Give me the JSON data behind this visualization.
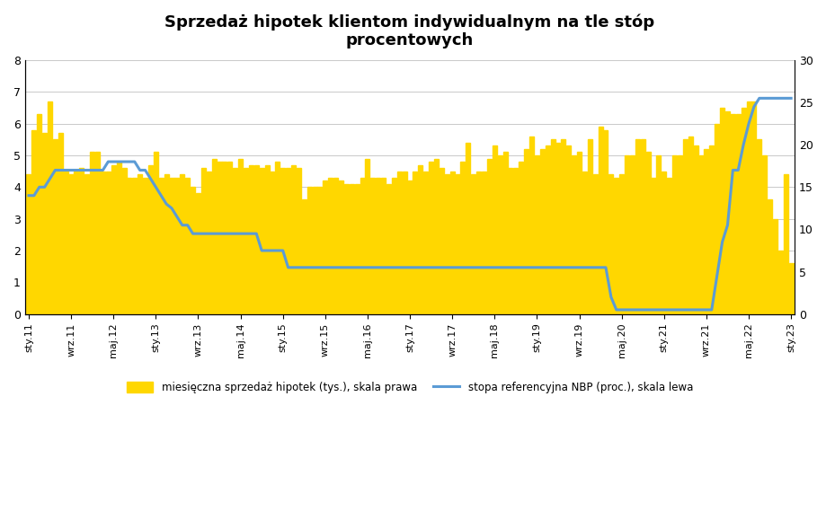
{
  "title": "Sprzedaż hipotek klientom indywidualnym na tle stóp\nprocentowych",
  "bar_color": "#FFD700",
  "line_color": "#5B9BD5",
  "bar_label": "miesięczna sprzedaż hipotek (tys.), skala prawa",
  "line_label": "stopa referencyjna NBP (proc.), skala lewa",
  "left_ylim": [
    0,
    8
  ],
  "right_ylim": [
    0,
    30
  ],
  "left_yticks": [
    0.0,
    1.0,
    2.0,
    3.0,
    4.0,
    5.0,
    6.0,
    7.0,
    8.0
  ],
  "right_yticks": [
    0.0,
    5.0,
    10.0,
    15.0,
    20.0,
    25.0,
    30.0
  ],
  "bar_values": [
    4.4,
    5.8,
    6.3,
    5.7,
    6.7,
    5.5,
    5.7,
    4.5,
    4.4,
    4.5,
    4.6,
    4.4,
    5.1,
    5.1,
    4.5,
    4.5,
    4.7,
    4.8,
    4.6,
    4.3,
    4.3,
    4.4,
    4.3,
    4.7,
    5.1,
    4.3,
    4.4,
    4.3,
    4.3,
    4.4,
    4.3,
    4.0,
    3.8,
    4.6,
    4.5,
    4.9,
    4.8,
    4.8,
    4.8,
    4.6,
    4.9,
    4.6,
    4.7,
    4.7,
    4.6,
    4.7,
    4.5,
    4.8,
    4.6,
    4.6,
    4.7,
    4.6,
    3.6,
    4.0,
    4.0,
    4.0,
    4.2,
    4.3,
    4.3,
    4.2,
    4.1,
    4.1,
    4.1,
    4.3,
    4.9,
    4.3,
    4.3,
    4.3,
    4.1,
    4.3,
    4.5,
    4.5,
    4.2,
    4.5,
    4.7,
    4.5,
    4.8,
    4.9,
    4.6,
    4.4,
    4.5,
    4.4,
    4.8,
    5.4,
    4.4,
    4.5,
    4.5,
    4.9,
    5.3,
    5.0,
    5.1,
    4.6,
    4.6,
    4.8,
    5.2,
    5.6,
    5.0,
    5.2,
    5.3,
    5.5,
    5.4,
    5.5,
    5.3,
    5.0,
    5.1,
    4.5,
    5.5,
    4.4,
    5.9,
    5.8,
    4.4,
    4.3,
    4.4,
    5.0,
    5.0,
    5.5,
    5.5,
    5.1,
    4.3,
    5.0,
    4.5,
    4.3,
    5.0,
    5.0,
    5.5,
    5.6,
    5.3,
    5.0,
    5.2,
    5.3,
    6.0,
    6.5,
    6.4,
    6.3,
    6.3,
    6.5,
    6.7,
    6.7,
    5.5,
    5.0,
    3.6,
    3.0,
    2.0,
    4.4,
    1.6
  ],
  "nbp_rate_right_scale": [
    14.0,
    14.0,
    15.0,
    15.0,
    16.0,
    17.0,
    17.0,
    17.0,
    17.0,
    17.0,
    17.0,
    17.0,
    17.0,
    17.0,
    17.0,
    18.0,
    18.0,
    18.0,
    18.0,
    18.0,
    18.0,
    17.0,
    17.0,
    16.0,
    15.0,
    14.0,
    13.0,
    12.5,
    11.5,
    10.5,
    10.5,
    9.5,
    9.5,
    9.5,
    9.5,
    9.5,
    9.5,
    9.5,
    9.5,
    9.5,
    9.5,
    9.5,
    9.5,
    9.5,
    7.5,
    7.5,
    7.5,
    7.5,
    7.5,
    5.5,
    5.5,
    5.5,
    5.5,
    5.5,
    5.5,
    5.5,
    5.5,
    5.5,
    5.5,
    5.5,
    5.5,
    5.5,
    5.5,
    5.5,
    5.5,
    5.5,
    5.5,
    5.5,
    5.5,
    5.5,
    5.5,
    5.5,
    5.5,
    5.5,
    5.5,
    5.5,
    5.5,
    5.5,
    5.5,
    5.5,
    5.5,
    5.5,
    5.5,
    5.5,
    5.5,
    5.5,
    5.5,
    5.5,
    5.5,
    5.5,
    5.5,
    5.5,
    5.5,
    5.5,
    5.5,
    5.5,
    5.5,
    5.5,
    5.5,
    5.5,
    5.5,
    5.5,
    5.5,
    5.5,
    5.5,
    5.5,
    5.5,
    5.5,
    5.5,
    5.5,
    2.0,
    0.5,
    0.5,
    0.5,
    0.5,
    0.5,
    0.5,
    0.5,
    0.5,
    0.5,
    0.5,
    0.5,
    0.5,
    0.5,
    0.5,
    0.5,
    0.5,
    0.5,
    0.5,
    0.5,
    4.5,
    8.5,
    10.5,
    17.0,
    17.0,
    20.0,
    22.5,
    24.5,
    25.5,
    25.5,
    25.5,
    25.5,
    25.5,
    25.5,
    25.5
  ],
  "xtick_idx": [
    0,
    8,
    16,
    24,
    32,
    40,
    48,
    56,
    64,
    72,
    80,
    88,
    96,
    104,
    112,
    120,
    128,
    136,
    144
  ],
  "xtick_labels": [
    "sty.11",
    "wrz.11",
    "maj.12",
    "sty.13",
    "wrz.13",
    "maj.14",
    "sty.15",
    "wrz.15",
    "maj.16",
    "sty.17",
    "wrz.17",
    "maj.18",
    "sty.19",
    "wrz.19",
    "maj.20",
    "sty.21",
    "wrz.21",
    "maj.22",
    "sty.23"
  ],
  "background_color": "#FFFFFF",
  "grid_color": "#C0C0C0"
}
